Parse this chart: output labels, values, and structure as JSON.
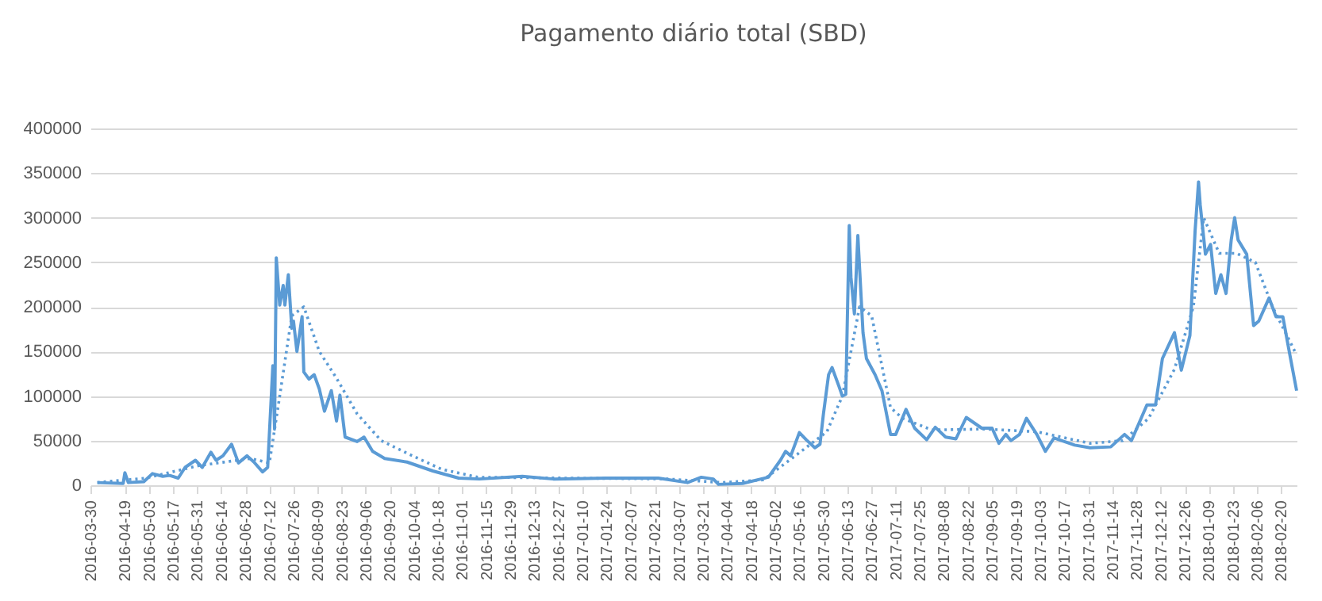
{
  "chart_data": {
    "type": "line",
    "title": "Pagamento diário total (SBD)",
    "x": [
      "2016-04-03",
      "2016-04-18",
      "2016-04-19",
      "2016-04-21",
      "2016-04-30",
      "2016-05-05",
      "2016-05-11",
      "2016-05-15",
      "2016-05-20",
      "2016-05-24",
      "2016-05-30",
      "2016-06-03",
      "2016-06-08",
      "2016-06-11",
      "2016-06-15",
      "2016-06-20",
      "2016-06-24",
      "2016-06-29",
      "2016-07-03",
      "2016-07-08",
      "2016-07-11",
      "2016-07-14",
      "2016-07-15",
      "2016-07-16",
      "2016-07-18",
      "2016-07-20",
      "2016-07-21",
      "2016-07-23",
      "2016-07-25",
      "2016-07-26",
      "2016-07-28",
      "2016-07-31",
      "2016-08-01",
      "2016-08-04",
      "2016-08-07",
      "2016-08-10",
      "2016-08-13",
      "2016-08-17",
      "2016-08-20",
      "2016-08-22",
      "2016-08-25",
      "2016-09-01",
      "2016-09-05",
      "2016-09-10",
      "2016-09-17",
      "2016-09-30",
      "2016-10-15",
      "2016-10-30",
      "2016-11-11",
      "2016-12-06",
      "2016-12-24",
      "2017-01-24",
      "2017-02-23",
      "2017-03-12",
      "2017-03-20",
      "2017-03-27",
      "2017-03-30",
      "2017-04-13",
      "2017-04-28",
      "2017-05-05",
      "2017-05-08",
      "2017-05-11",
      "2017-05-16",
      "2017-05-20",
      "2017-05-25",
      "2017-05-28",
      "2017-05-30",
      "2017-06-02",
      "2017-06-04",
      "2017-06-08",
      "2017-06-10",
      "2017-06-12",
      "2017-06-14",
      "2017-06-15",
      "2017-06-17",
      "2017-06-19",
      "2017-06-22",
      "2017-06-24",
      "2017-06-29",
      "2017-07-03",
      "2017-07-08",
      "2017-07-11",
      "2017-07-17",
      "2017-07-22",
      "2017-07-29",
      "2017-08-03",
      "2017-08-09",
      "2017-08-15",
      "2017-08-21",
      "2017-08-30",
      "2017-09-05",
      "2017-09-09",
      "2017-09-13",
      "2017-09-16",
      "2017-09-21",
      "2017-09-25",
      "2017-10-01",
      "2017-10-06",
      "2017-10-11",
      "2017-10-23",
      "2017-11-01",
      "2017-11-13",
      "2017-11-21",
      "2017-11-25",
      "2017-12-04",
      "2017-12-09",
      "2017-12-13",
      "2017-12-20",
      "2017-12-24",
      "2017-12-29",
      "2018-01-01",
      "2018-01-03",
      "2018-01-04",
      "2018-01-07",
      "2018-01-10",
      "2018-01-13",
      "2018-01-16",
      "2018-01-19",
      "2018-01-22",
      "2018-01-24",
      "2018-01-26",
      "2018-01-31",
      "2018-02-04",
      "2018-02-07",
      "2018-02-10",
      "2018-02-13",
      "2018-02-17",
      "2018-02-21",
      "2018-02-25",
      "2018-03-01"
    ],
    "series": [
      {
        "color": "#5b9bd5",
        "values": [
          3000,
          2000,
          14000,
          3000,
          4000,
          13000,
          10000,
          11000,
          8000,
          20000,
          28000,
          20000,
          37000,
          28000,
          33000,
          46000,
          25000,
          33000,
          26000,
          15000,
          20000,
          134000,
          63000,
          255000,
          202000,
          224000,
          202000,
          236000,
          176000,
          184000,
          150000,
          189000,
          127000,
          119000,
          124000,
          108000,
          83000,
          106000,
          72000,
          101000,
          54000,
          49000,
          54000,
          38000,
          30000,
          26000,
          16000,
          8000,
          7000,
          10000,
          7000,
          8000,
          8000,
          3000,
          9000,
          7000,
          1000,
          2000,
          9000,
          28000,
          38000,
          33000,
          59000,
          51000,
          42000,
          46000,
          80000,
          124000,
          132000,
          111000,
          100000,
          102000,
          291000,
          233000,
          192000,
          280000,
          171000,
          142000,
          124000,
          106000,
          57000,
          57000,
          85000,
          64000,
          51000,
          65000,
          54000,
          52000,
          76000,
          64000,
          64000,
          47000,
          57000,
          50000,
          57000,
          75000,
          57000,
          38000,
          53000,
          45000,
          42000,
          43000,
          57000,
          50000,
          90000,
          90000,
          142000,
          171000,
          129000,
          168000,
          285000,
          340000,
          314000,
          259000,
          270000,
          215000,
          236000,
          215000,
          275000,
          300000,
          275000,
          259000,
          179000,
          184000,
          197000,
          210000,
          189000,
          189000,
          147000,
          106000
        ]
      },
      {
        "type": "line",
        "color": "#5b9bd5",
        "line_style": "dotted",
        "x": [
          "2016-04-03",
          "2016-05-01",
          "2016-06-01",
          "2016-07-01",
          "2016-07-12",
          "2016-07-18",
          "2016-07-25",
          "2016-08-01",
          "2016-08-10",
          "2016-08-20",
          "2016-09-01",
          "2016-09-15",
          "2016-10-01",
          "2016-10-20",
          "2016-11-10",
          "2017-01-01",
          "2017-03-01",
          "2017-04-01",
          "2017-04-25",
          "2017-05-15",
          "2017-06-01",
          "2017-06-10",
          "2017-06-20",
          "2017-06-27",
          "2017-07-08",
          "2017-07-15",
          "2017-08-01",
          "2017-09-01",
          "2017-10-01",
          "2017-11-01",
          "2017-11-20",
          "2017-12-05",
          "2017-12-20",
          "2017-12-31",
          "2018-01-06",
          "2018-01-15",
          "2018-01-25",
          "2018-02-05",
          "2018-02-15",
          "2018-02-28"
        ],
        "values": [
          3000,
          8000,
          22000,
          30000,
          25000,
          100000,
          190000,
          200000,
          150000,
          120000,
          80000,
          50000,
          35000,
          18000,
          9000,
          8000,
          7000,
          3000,
          6000,
          35000,
          60000,
          100000,
          200000,
          190000,
          87000,
          75000,
          62000,
          63000,
          60000,
          47000,
          50000,
          75000,
          130000,
          200000,
          300000,
          260000,
          260000,
          250000,
          200000,
          150000
        ]
      }
    ],
    "xlim": [
      "2016-03-30",
      "2018-03-01"
    ],
    "xticks": [
      "2016-03-30",
      "2016-04-19",
      "2016-05-03",
      "2016-05-17",
      "2016-05-31",
      "2016-06-14",
      "2016-06-28",
      "2016-07-12",
      "2016-07-26",
      "2016-08-09",
      "2016-08-23",
      "2016-09-06",
      "2016-09-20",
      "2016-10-04",
      "2016-10-18",
      "2016-11-01",
      "2016-11-15",
      "2016-11-29",
      "2016-12-13",
      "2016-12-27",
      "2017-01-10",
      "2017-01-24",
      "2017-02-07",
      "2017-02-21",
      "2017-03-07",
      "2017-03-21",
      "2017-04-04",
      "2017-04-18",
      "2017-05-02",
      "2017-05-16",
      "2017-05-30",
      "2017-06-13",
      "2017-06-27",
      "2017-07-11",
      "2017-07-25",
      "2017-08-08",
      "2017-08-22",
      "2017-09-05",
      "2017-09-19",
      "2017-10-03",
      "2017-10-17",
      "2017-10-31",
      "2017-11-14",
      "2017-11-28",
      "2017-12-12",
      "2017-12-26",
      "2018-01-09",
      "2018-01-23",
      "2018-02-06",
      "2018-02-20"
    ],
    "ylim": [
      0,
      400000
    ],
    "yticks": [
      0,
      50000,
      100000,
      150000,
      200000,
      250000,
      300000,
      350000,
      400000
    ],
    "grid": "y",
    "line_style": "solid",
    "marker": "none"
  }
}
